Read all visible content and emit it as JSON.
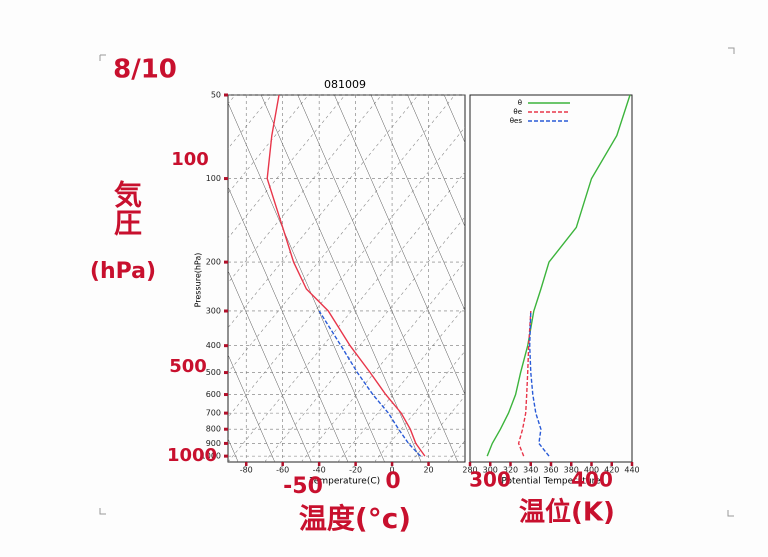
{
  "chart_data": [
    {
      "type": "line",
      "title": "081009",
      "xlabel": "Temperature(C)",
      "ylabel": "Pressure(hPa)",
      "y_scale": "log",
      "xlim": [
        -90,
        40
      ],
      "xticks": [
        -80,
        -60,
        -40,
        -20,
        0,
        20
      ],
      "ylim": [
        1050,
        50
      ],
      "yticks": [
        50,
        100,
        200,
        300,
        400,
        500,
        600,
        700,
        800,
        900,
        1000
      ],
      "y": [
        1000,
        900,
        800,
        700,
        600,
        500,
        400,
        300,
        250,
        200,
        150,
        100,
        70,
        50
      ],
      "series": [
        {
          "color": "#e8364a",
          "dash": false,
          "values": [
            18,
            13,
            10,
            5,
            -3.5,
            -12,
            -23,
            -35,
            -47,
            -54,
            -60,
            -68.5,
            -66,
            -62
          ]
        },
        {
          "color": "#2a5bd7",
          "dash": true,
          "values": [
            15.6,
            9,
            3.6,
            -2,
            -10.6,
            -19,
            -28,
            -40,
            null,
            null,
            null,
            null,
            null,
            null
          ]
        }
      ]
    },
    {
      "type": "line",
      "xlabel": "Potential Temperature",
      "y_scale": "log",
      "xlim": [
        280,
        440
      ],
      "xticks": [
        280,
        300,
        320,
        340,
        360,
        380,
        400,
        420,
        440
      ],
      "ylim": [
        1050,
        50
      ],
      "y": [
        1000,
        900,
        800,
        700,
        600,
        500,
        400,
        300,
        250,
        200,
        150,
        100,
        70,
        50
      ],
      "series": [
        {
          "name": "θ",
          "color": "#3cb43c",
          "dash": false,
          "values": [
            297,
            302,
            310,
            318,
            325,
            330,
            337,
            343,
            350,
            358,
            385,
            400,
            425,
            438
          ]
        },
        {
          "name": "θe",
          "color": "#e8364a",
          "dash": true,
          "values": [
            333,
            328,
            332,
            335,
            336,
            337,
            338,
            340,
            null,
            null,
            null,
            null,
            null,
            null
          ]
        },
        {
          "name": "θes",
          "color": "#2a5bd7",
          "dash": true,
          "values": [
            358,
            348,
            350,
            345,
            342,
            340,
            339,
            340,
            null,
            null,
            null,
            null,
            null,
            null
          ]
        }
      ]
    }
  ],
  "annotations": {
    "date": "8/10",
    "pressure": "気圧",
    "pressure_unit": "(hPa)",
    "p100": "100",
    "p500": "500",
    "p1000": "1000",
    "t_minus50": "-50",
    "t_zero": "0",
    "temperature": "温度(°c)",
    "k300": "300",
    "k400": "400",
    "potential": "温位(K)"
  }
}
